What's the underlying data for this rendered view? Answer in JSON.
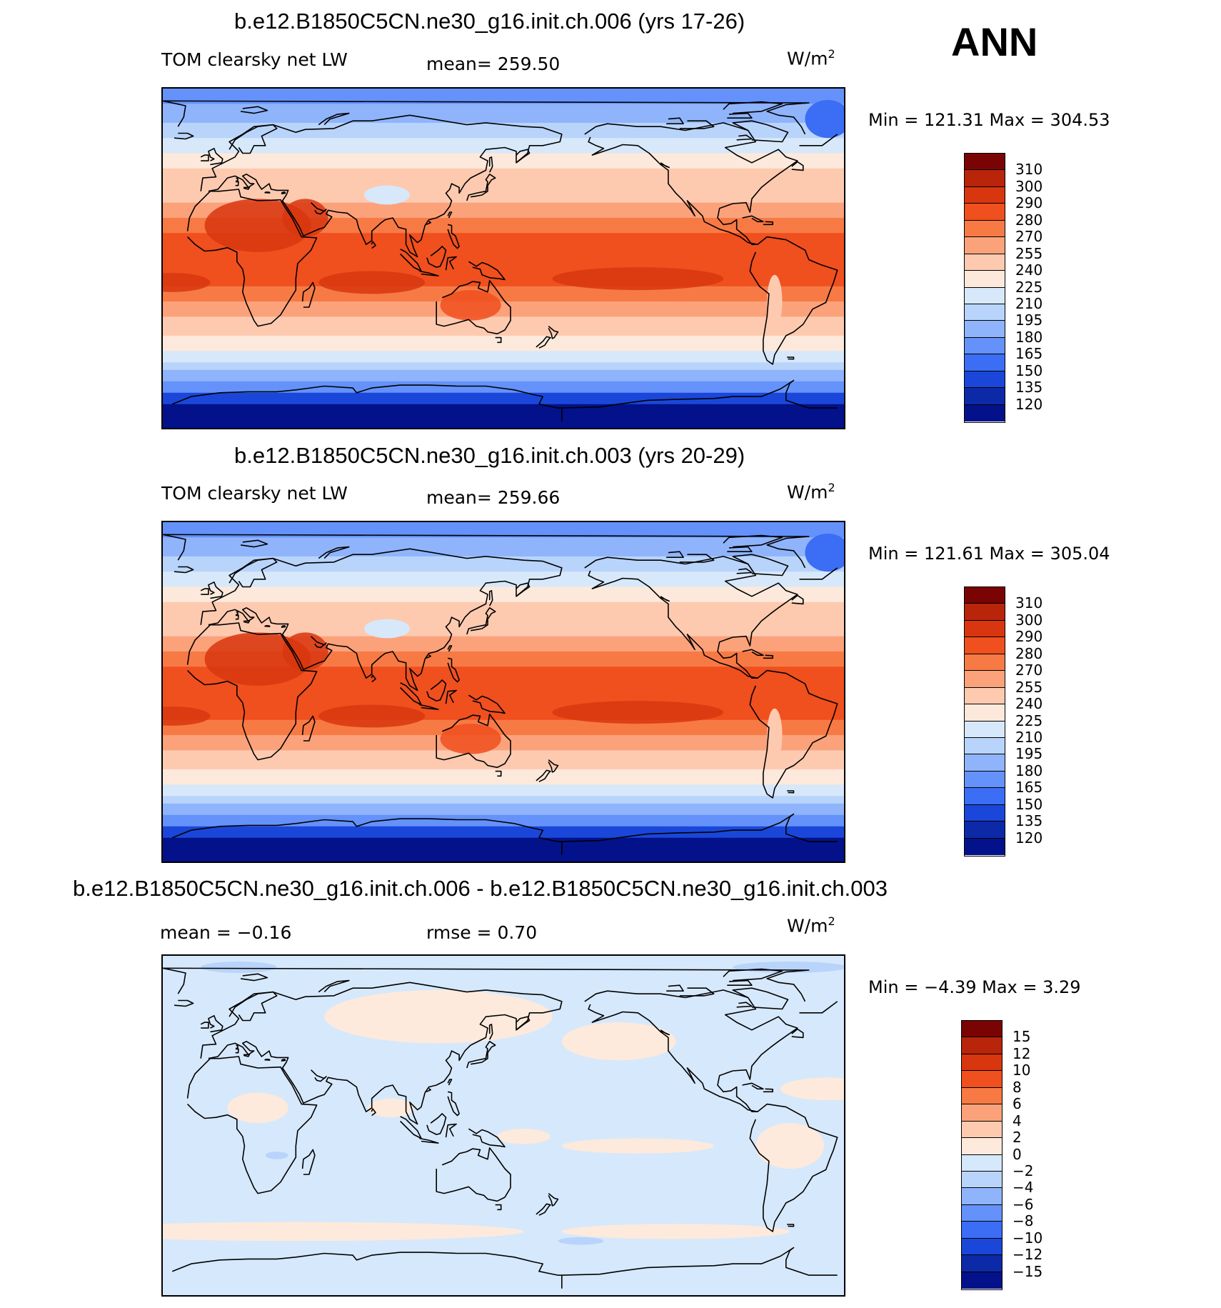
{
  "season": "ANN",
  "panels": [
    {
      "title": "b.e12.B1850C5CN.ne30_g16.init.ch.006 (yrs 17-26)",
      "left_label": "TOM clearsky net LW",
      "center_label": "mean=  259.50",
      "units": "W/m",
      "units_sup": "2",
      "minmax": "Min  =  121.31  Max  =  304.53",
      "field": "abs",
      "levels": [
        "310",
        "300",
        "290",
        "280",
        "270",
        "255",
        "240",
        "225",
        "210",
        "195",
        "180",
        "165",
        "150",
        "135",
        "120"
      ]
    },
    {
      "title": "b.e12.B1850C5CN.ne30_g16.init.ch.003 (yrs 20-29)",
      "left_label": "TOM clearsky net LW",
      "center_label": "mean=  259.66",
      "units": "W/m",
      "units_sup": "2",
      "minmax": "Min  =  121.61  Max  =  305.04",
      "field": "abs",
      "levels": [
        "310",
        "300",
        "290",
        "280",
        "270",
        "255",
        "240",
        "225",
        "210",
        "195",
        "180",
        "165",
        "150",
        "135",
        "120"
      ]
    },
    {
      "title": "b.e12.B1850C5CN.ne30_g16.init.ch.006 - b.e12.B1850C5CN.ne30_g16.init.ch.003",
      "left_label": "mean  =    −0.16",
      "center_label": "rmse  =     0.70",
      "units": "W/m",
      "units_sup": "2",
      "minmax": "Min  =    −4.39  Max  =     3.29",
      "field": "diff",
      "levels": [
        "15",
        "12",
        "10",
        "8",
        "6",
        "4",
        "2",
        "0",
        "−2",
        "−4",
        "−6",
        "−8",
        "−10",
        "−12",
        "−15"
      ]
    }
  ],
  "colors": {
    "abs_scale": [
      "#7a0403",
      "#b8250a",
      "#d8360f",
      "#f04f1e",
      "#f77a45",
      "#fba27b",
      "#fdcab0",
      "#fde9db",
      "#d7e8fa",
      "#b9d4fb",
      "#8fb4fb",
      "#6492fa",
      "#3b6ef5",
      "#1a47d9",
      "#0c2aa8",
      "#03128a"
    ],
    "diff_scale": [
      "#7a0403",
      "#b8250a",
      "#d8360f",
      "#f04f1e",
      "#f77a45",
      "#fba27b",
      "#fdcab0",
      "#fdeadc",
      "#d6e8fb",
      "#b9d4fb",
      "#8fb4fb",
      "#6492fa",
      "#3b6ef5",
      "#1a47d9",
      "#0c2aa8",
      "#03128a"
    ]
  }
}
